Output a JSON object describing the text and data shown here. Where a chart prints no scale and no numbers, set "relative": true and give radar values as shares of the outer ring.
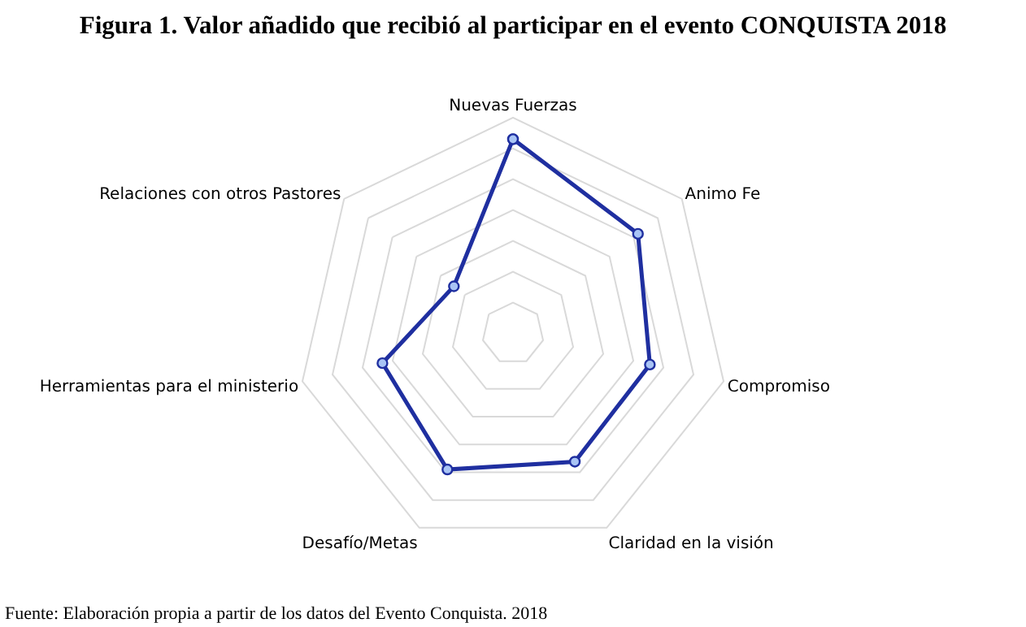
{
  "chart_data": {
    "type": "radar",
    "title": "Figura 1. Valor añadido que recibió al participar en el evento CONQUISTA 2018",
    "categories": [
      "Nuevas Fuerzas",
      "Animo Fe",
      "Compromiso",
      "Claridad en la visión",
      "Desafío/Metas",
      "Herramientas para el ministerio",
      "Relaciones con otros Pastores"
    ],
    "series": [
      {
        "color": "#1f2fa0",
        "values": [
          0.9,
          0.74,
          0.65,
          0.66,
          0.7,
          0.62,
          0.35
        ]
      }
    ],
    "relative": true,
    "grid": true,
    "marker": "circle",
    "legend": false,
    "annotations": [
      "Fuente: Elaboración propia a partir de los datos del Evento Conquista. 2018"
    ]
  }
}
